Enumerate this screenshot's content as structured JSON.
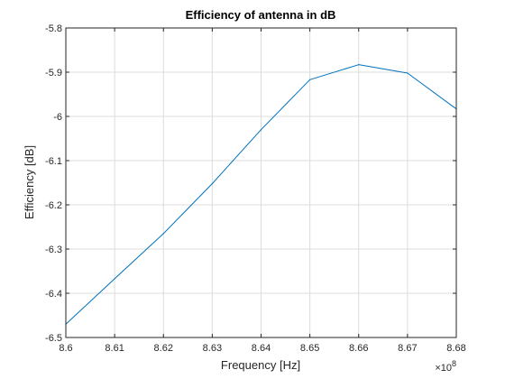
{
  "chart_data": {
    "type": "line",
    "title": "Efficiency of antenna in dB",
    "xlabel": "Frequency [Hz]",
    "ylabel": "Efficiency [dB]",
    "x_exponent_base": "×10",
    "x_exponent_power": "8",
    "xlim": [
      8.6,
      8.68
    ],
    "ylim": [
      -6.5,
      -5.8
    ],
    "xticks": [
      "8.6",
      "8.61",
      "8.62",
      "8.63",
      "8.64",
      "8.65",
      "8.66",
      "8.67",
      "8.68"
    ],
    "yticks": [
      "-5.8",
      "-5.9",
      "-6",
      "-6.1",
      "-6.2",
      "-6.3",
      "-6.4",
      "-6.5"
    ],
    "grid": true,
    "series": [
      {
        "color": "#0072bd",
        "x": [
          8.6,
          8.61,
          8.62,
          8.63,
          8.64,
          8.65,
          8.66,
          8.67,
          8.68
        ],
        "y": [
          -6.47,
          -6.367,
          -6.265,
          -6.152,
          -6.03,
          -5.917,
          -5.883,
          -5.902,
          -5.983
        ]
      }
    ]
  }
}
